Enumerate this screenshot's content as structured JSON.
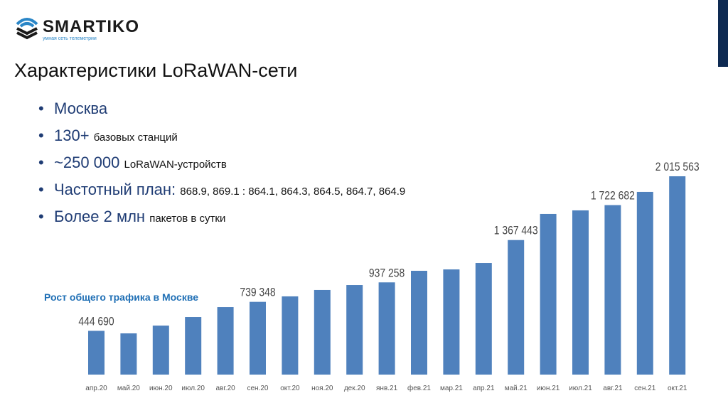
{
  "logo": {
    "name": "SMARTIKO",
    "tagline": "умная сеть телеметрии"
  },
  "title": "Характеристики LoRaWAN-сети",
  "bullets": [
    {
      "main": "Москва",
      "sub": ""
    },
    {
      "main": "130+",
      "sub": "базовых станций"
    },
    {
      "main": "~250 000",
      "sub": "LoRaWAN-устройств"
    },
    {
      "main": "Частотный план:",
      "sub": "868.9, 869.1 : 864.1, 864.3, 864.5, 864.7, 864.9"
    },
    {
      "main": "Более 2 млн",
      "sub": "пакетов в сутки"
    }
  ],
  "chart_data": {
    "type": "bar",
    "title": "Рост общего трафика в Москве",
    "xlabel": "",
    "ylabel": "",
    "categories": [
      "апр.20",
      "май.20",
      "июн.20",
      "июл.20",
      "авг.20",
      "сен.20",
      "окт.20",
      "ноя.20",
      "дек.20",
      "янв.21",
      "фев.21",
      "мар.21",
      "апр.21",
      "май.21",
      "июн.21",
      "июл.21",
      "авг.21",
      "сен.21",
      "окт.21"
    ],
    "values": [
      444690,
      419000,
      498000,
      585000,
      686000,
      739348,
      795000,
      860000,
      910000,
      937258,
      1055000,
      1069000,
      1134000,
      1367443,
      1633000,
      1669000,
      1722682,
      1857000,
      2015563
    ],
    "data_labels": {
      "0": "444 690",
      "5": "739 348",
      "9": "937 258",
      "13": "1 367 443",
      "16": "1 722 682",
      "18": "2 015 563"
    },
    "ylim": [
      0,
      2100000
    ],
    "color": "#4f81bd",
    "grid": false
  }
}
